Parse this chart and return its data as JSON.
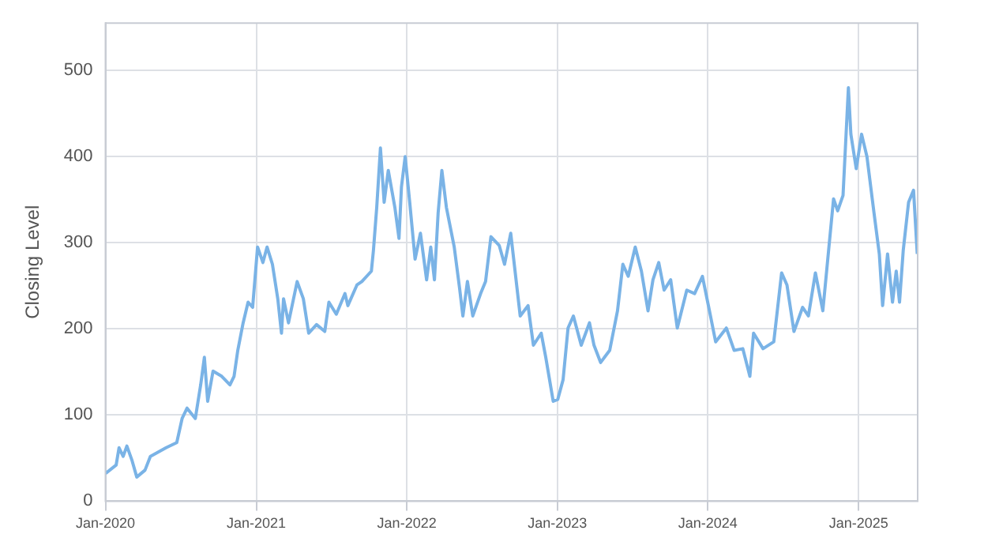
{
  "chart_data": {
    "type": "line",
    "ylabel": "Closing Level",
    "xlim": [
      "2020-01-01",
      "2025-05-24"
    ],
    "ylim": [
      0,
      555
    ],
    "yticks": [
      0,
      100,
      200,
      300,
      400,
      500
    ],
    "xticks": [
      {
        "value": "2020-01-01",
        "label": "Jan-2020"
      },
      {
        "value": "2021-01-01",
        "label": "Jan-2021"
      },
      {
        "value": "2022-01-01",
        "label": "Jan-2022"
      },
      {
        "value": "2023-01-01",
        "label": "Jan-2023"
      },
      {
        "value": "2024-01-01",
        "label": "Jan-2024"
      },
      {
        "value": "2025-01-01",
        "label": "Jan-2025"
      }
    ],
    "grid": true,
    "marker": "none",
    "line_style": "solid",
    "x": [
      "2020-01-01",
      "2020-01-27",
      "2020-02-03",
      "2020-02-13",
      "2020-02-22",
      "2020-03-05",
      "2020-03-17",
      "2020-04-06",
      "2020-04-19",
      "2020-05-27",
      "2020-06-22",
      "2020-07-05",
      "2020-07-17",
      "2020-08-06",
      "2020-08-19",
      "2020-08-28",
      "2020-09-05",
      "2020-09-18",
      "2020-10-09",
      "2020-10-29",
      "2020-11-08",
      "2020-11-17",
      "2020-11-30",
      "2020-12-12",
      "2020-12-23",
      "2021-01-04",
      "2021-01-17",
      "2021-01-27",
      "2021-02-09",
      "2021-02-22",
      "2021-03-03",
      "2021-03-08",
      "2021-03-20",
      "2021-04-10",
      "2021-04-25",
      "2021-05-08",
      "2021-05-27",
      "2021-06-16",
      "2021-06-26",
      "2021-07-14",
      "2021-08-04",
      "2021-08-11",
      "2021-09-02",
      "2021-09-14",
      "2021-10-07",
      "2021-10-12",
      "2021-10-20",
      "2021-10-29",
      "2021-11-07",
      "2021-11-17",
      "2021-12-03",
      "2021-12-13",
      "2021-12-19",
      "2021-12-28",
      "2022-01-08",
      "2022-01-21",
      "2022-02-03",
      "2022-02-18",
      "2022-02-28",
      "2022-03-09",
      "2022-03-18",
      "2022-03-27",
      "2022-04-07",
      "2022-04-26",
      "2022-05-09",
      "2022-05-17",
      "2022-05-28",
      "2022-06-10",
      "2022-06-29",
      "2022-07-11",
      "2022-07-24",
      "2022-08-13",
      "2022-08-26",
      "2022-09-10",
      "2022-10-03",
      "2022-10-22",
      "2022-11-04",
      "2022-11-23",
      "2022-12-04",
      "2022-12-22",
      "2023-01-02",
      "2023-01-15",
      "2023-01-27",
      "2023-02-09",
      "2023-02-28",
      "2023-03-20",
      "2023-03-31",
      "2023-04-16",
      "2023-05-08",
      "2023-05-27",
      "2023-06-09",
      "2023-06-22",
      "2023-07-09",
      "2023-07-24",
      "2023-08-09",
      "2023-08-21",
      "2023-09-04",
      "2023-09-17",
      "2023-10-03",
      "2023-10-19",
      "2023-11-11",
      "2023-11-30",
      "2023-12-19",
      "2024-01-05",
      "2024-01-20",
      "2024-02-15",
      "2024-03-05",
      "2024-03-26",
      "2024-04-12",
      "2024-04-21",
      "2024-05-14",
      "2024-06-09",
      "2024-06-28",
      "2024-07-11",
      "2024-07-28",
      "2024-08-18",
      "2024-09-01",
      "2024-09-18",
      "2024-10-06",
      "2024-10-16",
      "2024-11-01",
      "2024-11-11",
      "2024-11-24",
      "2024-12-07",
      "2024-12-13",
      "2024-12-26",
      "2025-01-08",
      "2025-01-21",
      "2025-02-07",
      "2025-02-20",
      "2025-02-28",
      "2025-03-12",
      "2025-03-24",
      "2025-04-02",
      "2025-04-10",
      "2025-04-19",
      "2025-05-02",
      "2025-05-14",
      "2025-05-23"
    ],
    "series": [
      {
        "color": "#7ab3e6",
        "values": [
          32,
          42,
          62,
          52,
          64,
          48,
          28,
          36,
          52,
          62,
          68,
          96,
          108,
          96,
          135,
          167,
          116,
          151,
          145,
          135,
          145,
          175,
          207,
          231,
          225,
          295,
          277,
          295,
          275,
          235,
          195,
          235,
          207,
          255,
          235,
          195,
          205,
          197,
          231,
          217,
          241,
          227,
          251,
          255,
          267,
          291,
          341,
          410,
          347,
          384,
          341,
          305,
          365,
          400,
          347,
          281,
          311,
          257,
          295,
          257,
          335,
          384,
          341,
          295,
          247,
          215,
          255,
          215,
          241,
          255,
          307,
          297,
          275,
          311,
          215,
          227,
          181,
          195,
          167,
          116,
          118,
          141,
          201,
          215,
          181,
          207,
          181,
          161,
          175,
          221,
          275,
          261,
          295,
          267,
          221,
          257,
          277,
          245,
          257,
          201,
          245,
          241,
          261,
          221,
          185,
          201,
          175,
          177,
          145,
          195,
          177,
          185,
          265,
          251,
          197,
          225,
          215,
          265,
          221,
          271,
          351,
          337,
          355,
          480,
          426,
          386,
          426,
          400,
          335,
          287,
          227,
          287,
          231,
          267,
          231,
          291,
          347,
          361,
          287
        ]
      }
    ]
  }
}
